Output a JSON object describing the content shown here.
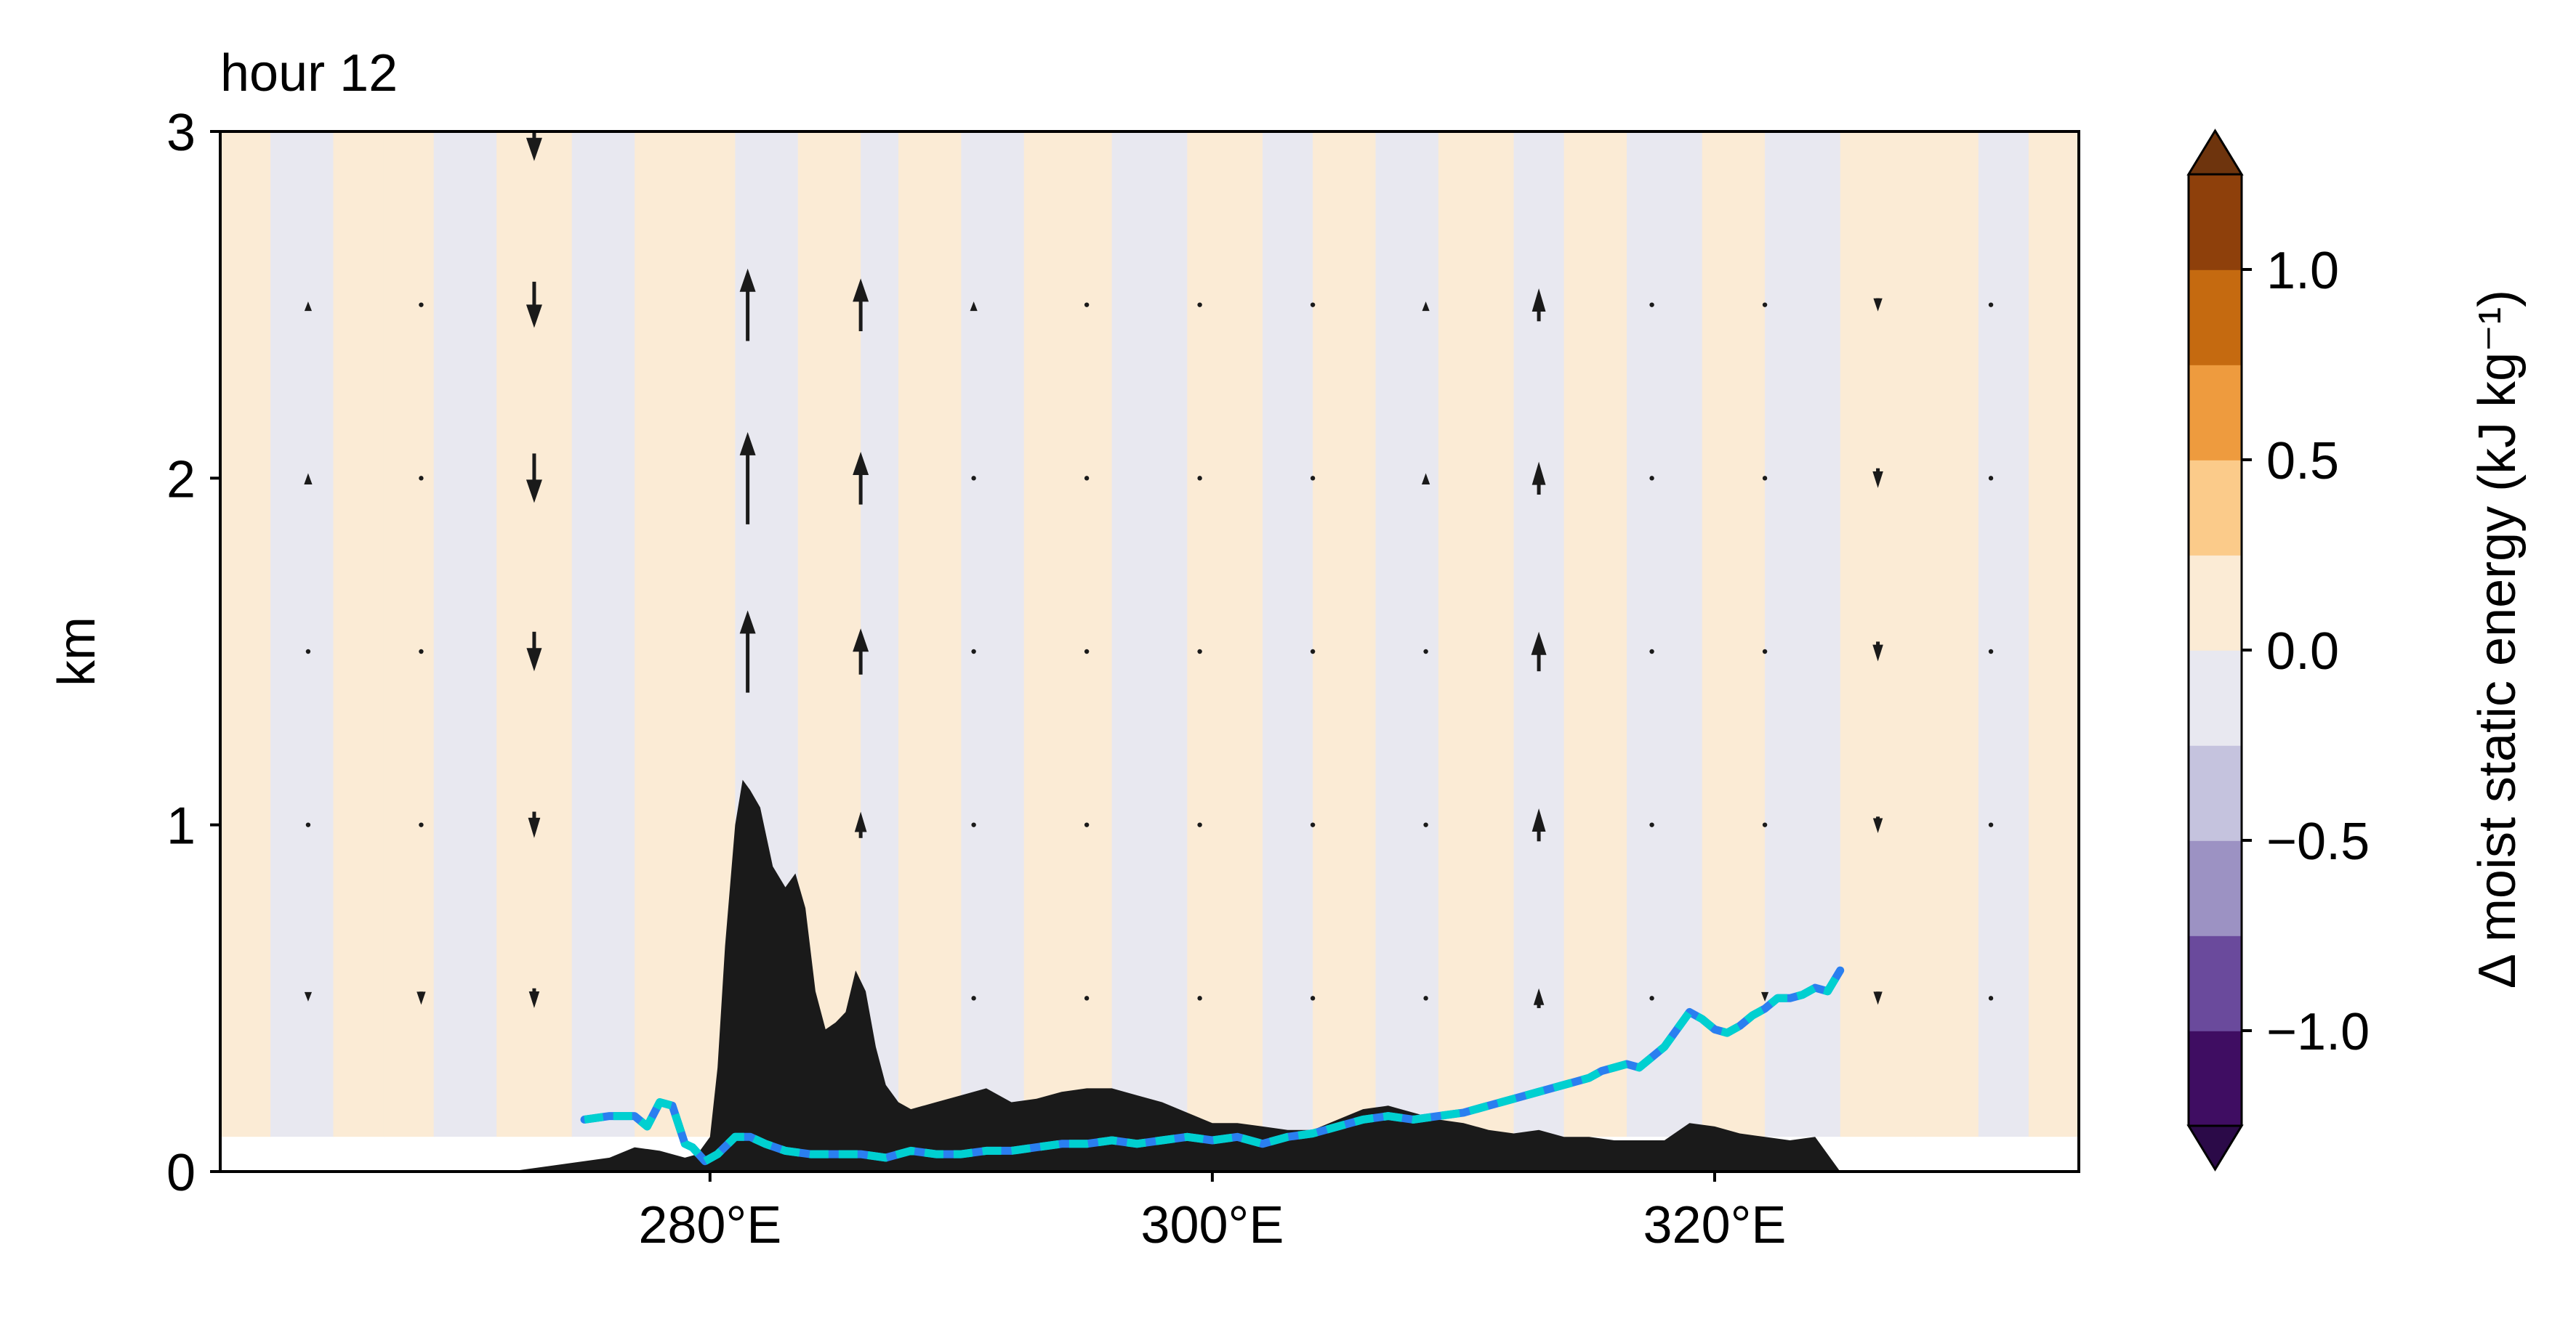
{
  "chart_data": {
    "type": "contour",
    "title": "hour 12",
    "xlabel": "",
    "ylabel": "km",
    "xlim": [
      260.5,
      334.5
    ],
    "ylim": [
      0,
      3
    ],
    "xticks": [
      280,
      300,
      320
    ],
    "xtick_labels": [
      "280°E",
      "300°E",
      "320°E"
    ],
    "yticks": [
      0,
      1,
      2,
      3
    ],
    "ytick_labels": [
      "0",
      "1",
      "2",
      "3"
    ],
    "grid": false,
    "colorbar": {
      "label": "Δ moist static energy (kJ kg⁻¹)",
      "levels": [
        -1.25,
        -1.0,
        -0.75,
        -0.5,
        -0.25,
        0.0,
        0.25,
        0.5,
        0.75,
        1.0,
        1.25
      ],
      "colors": [
        "#3f0d62",
        "#6a4a9c",
        "#9c92c3",
        "#c5c3de",
        "#e8e8f0",
        "#fbebd5",
        "#fbcb8a",
        "#ee9b3e",
        "#c56a10",
        "#8e400b"
      ],
      "extend_colors": {
        "under": "#2b0a48",
        "over": "#6e340d"
      },
      "ticks": [
        1.0,
        0.5,
        0.0,
        -0.5,
        -1.0
      ],
      "tick_labels": [
        "1.0",
        "0.5",
        "0.0",
        "−0.5",
        "−1.0"
      ]
    },
    "field_pattern_x_bands": [
      {
        "x0": 260.5,
        "x1": 262.5,
        "value": 0.05
      },
      {
        "x0": 262.5,
        "x1": 265.0,
        "value": -0.05
      },
      {
        "x0": 265.0,
        "x1": 267.0,
        "value": 0.05
      },
      {
        "x0": 267.0,
        "x1": 269.0,
        "value": 0.1
      },
      {
        "x0": 269.0,
        "x1": 271.5,
        "value": -0.05
      },
      {
        "x0": 271.5,
        "x1": 274.5,
        "value": 0.05
      },
      {
        "x0": 274.5,
        "x1": 277.0,
        "value": -0.05
      },
      {
        "x0": 277.0,
        "x1": 281.0,
        "value": 0.1
      },
      {
        "x0": 281.0,
        "x1": 283.5,
        "value": -0.1
      },
      {
        "x0": 283.5,
        "x1": 286.0,
        "value": 0.1
      },
      {
        "x0": 286.0,
        "x1": 287.5,
        "value": -0.05
      },
      {
        "x0": 287.5,
        "x1": 290.0,
        "value": 0.05
      },
      {
        "x0": 290.0,
        "x1": 292.5,
        "value": -0.05
      },
      {
        "x0": 292.5,
        "x1": 296.0,
        "value": 0.1
      },
      {
        "x0": 296.0,
        "x1": 299.0,
        "value": -0.05
      },
      {
        "x0": 299.0,
        "x1": 302.0,
        "value": 0.05
      },
      {
        "x0": 302.0,
        "x1": 304.0,
        "value": -0.05
      },
      {
        "x0": 304.0,
        "x1": 306.5,
        "value": 0.1
      },
      {
        "x0": 306.5,
        "x1": 309.0,
        "value": -0.05
      },
      {
        "x0": 309.0,
        "x1": 312.0,
        "value": 0.05
      },
      {
        "x0": 312.0,
        "x1": 314.0,
        "value": -0.1
      },
      {
        "x0": 314.0,
        "x1": 316.5,
        "value": 0.05
      },
      {
        "x0": 316.5,
        "x1": 319.5,
        "value": -0.05
      },
      {
        "x0": 319.5,
        "x1": 322.0,
        "value": 0.1
      },
      {
        "x0": 322.0,
        "x1": 325.0,
        "value": -0.05
      },
      {
        "x0": 325.0,
        "x1": 328.0,
        "value": 0.05
      },
      {
        "x0": 328.0,
        "x1": 330.5,
        "value": 0.1
      },
      {
        "x0": 330.5,
        "x1": 332.5,
        "value": -0.05
      },
      {
        "x0": 332.5,
        "x1": 334.5,
        "value": 0.1
      }
    ],
    "field_bottom_km": 0.1,
    "terrain": {
      "name": "terrain",
      "color": "#1a1a1a",
      "x": [
        260.5,
        272,
        276,
        277,
        278,
        279,
        279.5,
        280,
        280.3,
        280.6,
        281,
        281.3,
        281.6,
        282,
        282.5,
        283,
        283.4,
        283.8,
        284.2,
        284.6,
        285,
        285.4,
        285.8,
        286.2,
        286.6,
        287,
        287.5,
        288,
        289,
        290,
        291,
        292,
        293,
        294,
        295,
        296,
        297,
        298,
        299,
        300,
        301,
        302,
        303,
        304,
        305,
        306,
        307,
        308,
        309,
        310,
        311,
        312,
        313,
        314,
        315,
        316,
        317,
        318,
        319,
        320,
        321,
        322,
        323,
        324,
        325,
        334.5
      ],
      "y": [
        0.0,
        0.0,
        0.04,
        0.07,
        0.06,
        0.04,
        0.05,
        0.1,
        0.3,
        0.65,
        1.0,
        1.13,
        1.1,
        1.05,
        0.88,
        0.82,
        0.86,
        0.76,
        0.52,
        0.41,
        0.43,
        0.46,
        0.58,
        0.52,
        0.36,
        0.25,
        0.2,
        0.18,
        0.2,
        0.22,
        0.24,
        0.2,
        0.21,
        0.23,
        0.24,
        0.24,
        0.22,
        0.2,
        0.17,
        0.14,
        0.14,
        0.13,
        0.12,
        0.12,
        0.15,
        0.18,
        0.19,
        0.17,
        0.15,
        0.14,
        0.12,
        0.11,
        0.12,
        0.1,
        0.1,
        0.09,
        0.09,
        0.09,
        0.14,
        0.13,
        0.11,
        0.1,
        0.09,
        0.1,
        0.0,
        0.0
      ]
    },
    "series": [
      {
        "name": "",
        "color": "#00d0d0",
        "dash_color": "#2a7ff0",
        "x": [
          275,
          276,
          277,
          277.5,
          278,
          278.5,
          279,
          279.3,
          279.8,
          280.3,
          281,
          281.6,
          282.2,
          283,
          284,
          285,
          286,
          287,
          288,
          289,
          290,
          291,
          292,
          293,
          294,
          295,
          296,
          297,
          298,
          299,
          300,
          301,
          302,
          303,
          304,
          305,
          306,
          307,
          308,
          309,
          310,
          311,
          312,
          313,
          314,
          315,
          315.5,
          316,
          316.5,
          317,
          317.5,
          318,
          318.5,
          319,
          319.5,
          320,
          320.5,
          321,
          321.5,
          322,
          322.5,
          323,
          323.5,
          324,
          324.5,
          325
        ],
        "y": [
          0.15,
          0.16,
          0.16,
          0.13,
          0.2,
          0.19,
          0.08,
          0.07,
          0.03,
          0.05,
          0.1,
          0.1,
          0.08,
          0.06,
          0.05,
          0.05,
          0.05,
          0.04,
          0.06,
          0.05,
          0.05,
          0.06,
          0.06,
          0.07,
          0.08,
          0.08,
          0.09,
          0.08,
          0.09,
          0.1,
          0.09,
          0.1,
          0.08,
          0.1,
          0.11,
          0.13,
          0.15,
          0.16,
          0.15,
          0.16,
          0.17,
          0.19,
          0.21,
          0.23,
          0.25,
          0.27,
          0.29,
          0.3,
          0.31,
          0.3,
          0.33,
          0.36,
          0.41,
          0.46,
          0.44,
          0.41,
          0.4,
          0.42,
          0.45,
          0.47,
          0.5,
          0.5,
          0.51,
          0.53,
          0.52,
          0.58
        ]
      }
    ],
    "quiver": {
      "color": "#1a1a1a",
      "x": [
        264,
        268.5,
        273,
        281.5,
        286,
        290.5,
        295,
        299.5,
        304,
        308.5,
        313,
        317.5,
        322,
        326.5,
        331
      ],
      "y": [
        0.5,
        1.0,
        1.5,
        2.0,
        2.5
      ],
      "w": [
        [
          -0.02,
          -0.04,
          -0.06,
          0.0,
          0.0,
          0.0,
          0.0,
          0.0,
          0.0,
          0.0,
          0.06,
          0.0,
          -0.02,
          -0.04,
          0.0
        ],
        [
          0.0,
          0.0,
          -0.08,
          0.22,
          0.08,
          0.0,
          0.0,
          0.0,
          0.0,
          0.0,
          0.1,
          0.0,
          0.0,
          -0.05,
          0.0
        ],
        [
          0.0,
          0.0,
          -0.12,
          0.25,
          0.14,
          0.0,
          0.0,
          0.0,
          0.0,
          0.0,
          0.12,
          0.0,
          0.0,
          -0.06,
          0.0
        ],
        [
          0.03,
          0.0,
          -0.15,
          0.28,
          0.16,
          0.0,
          0.0,
          0.0,
          0.0,
          0.03,
          0.1,
          0.0,
          0.0,
          -0.06,
          0.0
        ],
        [
          0.02,
          0.0,
          -0.14,
          0.22,
          0.16,
          0.02,
          0.0,
          0.0,
          0.0,
          0.02,
          0.1,
          0.0,
          0.0,
          -0.04,
          0.0
        ]
      ],
      "top_arrow": {
        "x": 273,
        "y": 3.0,
        "w": -0.18
      }
    }
  }
}
